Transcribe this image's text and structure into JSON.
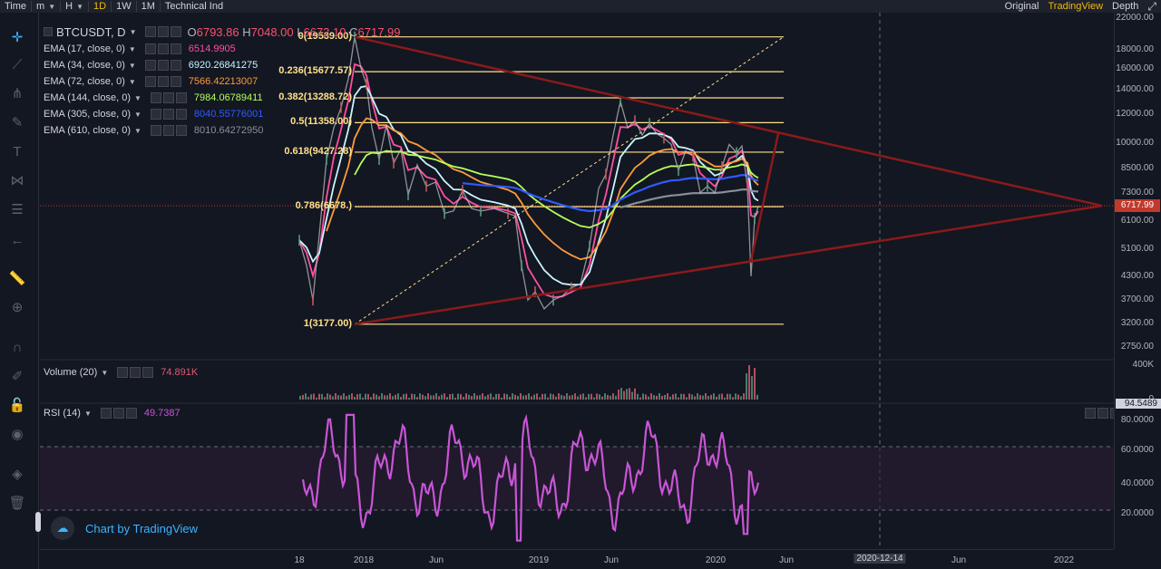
{
  "toolbar": {
    "items": [
      "Time",
      "m",
      "H",
      "1D",
      "1W",
      "1M",
      "Technical Ind"
    ],
    "right_items": [
      "Original",
      "TradingView",
      "Depth"
    ],
    "fullscreen_icon": "expand-icon"
  },
  "symbol": {
    "name": "BTCUSDT, D",
    "open_label": "O",
    "open": "6793.86",
    "high_label": "H",
    "high": "7048.00",
    "low_label": "L",
    "low": "6672.10",
    "close_label": "C",
    "close": "6717.99"
  },
  "indicators": [
    {
      "name": "EMA (17, close, 0)",
      "value": "6514.9905",
      "color": "#ff4fa3"
    },
    {
      "name": "EMA (34, close, 0)",
      "value": "6920.26841275",
      "color": "#c9f5ff"
    },
    {
      "name": "EMA (72, close, 0)",
      "value": "7566.42213007",
      "color": "#ff9a3c"
    },
    {
      "name": "EMA (144, close, 0)",
      "value": "7984.06789411",
      "color": "#b7ff5a"
    },
    {
      "name": "EMA (305, close, 0)",
      "value": "8040.55776001",
      "color": "#2e5bff"
    },
    {
      "name": "EMA (610, close, 0)",
      "value": "8010.64272950",
      "color": "#8a8f9c"
    }
  ],
  "fib": [
    {
      "label": "0(19539.00)",
      "price": 19539
    },
    {
      "label": "0.236(15677.57)",
      "price": 15677.57
    },
    {
      "label": "0.382(13288.72)",
      "price": 13288.72
    },
    {
      "label": "0.5(11358.00)",
      "price": 11358
    },
    {
      "label": "0.618(9427.28)",
      "price": 9427.28
    },
    {
      "label": "0.786(6678.)",
      "price": 6678
    },
    {
      "label": "1(3177.00)",
      "price": 3177
    }
  ],
  "price_axis": [
    "22000.00",
    "18000.00",
    "16000.00",
    "14000.00",
    "12000.00",
    "10000.00",
    "8500.00",
    "7300.00",
    "6100.00",
    "5100.00",
    "4300.00",
    "3700.00",
    "3200.00",
    "2750.00"
  ],
  "current_price": "6717.99",
  "volume": {
    "title": "Volume (20)",
    "value": "74.891K",
    "axis_top": "400K",
    "axis_bottom": "0"
  },
  "rsi": {
    "title": "RSI (14)",
    "value": "49.7387",
    "axis": [
      "94.5489",
      "80.0000",
      "60.0000",
      "40.0000",
      "20.0000"
    ]
  },
  "time_axis": [
    "18",
    "2018",
    "Jun",
    "2019",
    "Jun",
    "2020",
    "Jun",
    "2020-12-14",
    "Jun",
    "2022"
  ],
  "watermark": "Chart by TradingView",
  "colors": {
    "accent": "#f0b90b",
    "fib": "#ffe08a",
    "trend": "#8b1a1a",
    "rsi": "#c955d6",
    "volume": "#e05a70"
  }
}
